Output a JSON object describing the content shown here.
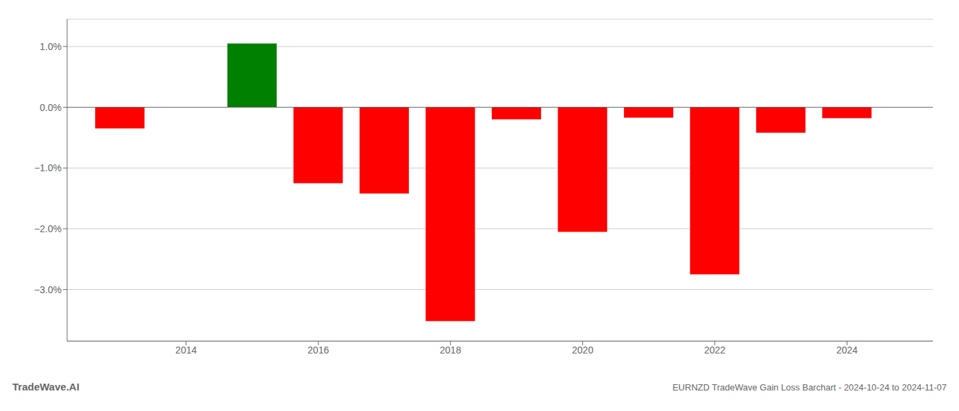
{
  "chart_data": {
    "type": "bar",
    "title": "EURNZD TradeWave Gain Loss Barchart - 2024-10-24 to 2024-11-07",
    "annotations": [
      "TradeWave.AI"
    ],
    "x": [
      2013,
      2015,
      2016,
      2017,
      2018,
      2019,
      2020,
      2021,
      2022,
      2023,
      2024
    ],
    "values": [
      -0.35,
      1.05,
      -1.25,
      -1.42,
      -3.52,
      -0.2,
      -2.05,
      -0.17,
      -2.75,
      -0.42,
      -0.18
    ],
    "colors": [
      "red",
      "green",
      "red",
      "red",
      "red",
      "red",
      "red",
      "red",
      "red",
      "red",
      "red"
    ],
    "xlim": [
      2012.2,
      2025.3
    ],
    "ylim": [
      -3.85,
      1.45
    ],
    "xticks": [
      2014,
      2016,
      2018,
      2020,
      2022,
      2024
    ],
    "yticks": [
      {
        "value": 1.0,
        "label": "1.0%"
      },
      {
        "value": 0.0,
        "label": "0.0%"
      },
      {
        "value": -1.0,
        "label": "−1.0%"
      },
      {
        "value": -2.0,
        "label": "−2.0%"
      },
      {
        "value": -3.0,
        "label": "−3.0%"
      }
    ],
    "grid": true
  }
}
